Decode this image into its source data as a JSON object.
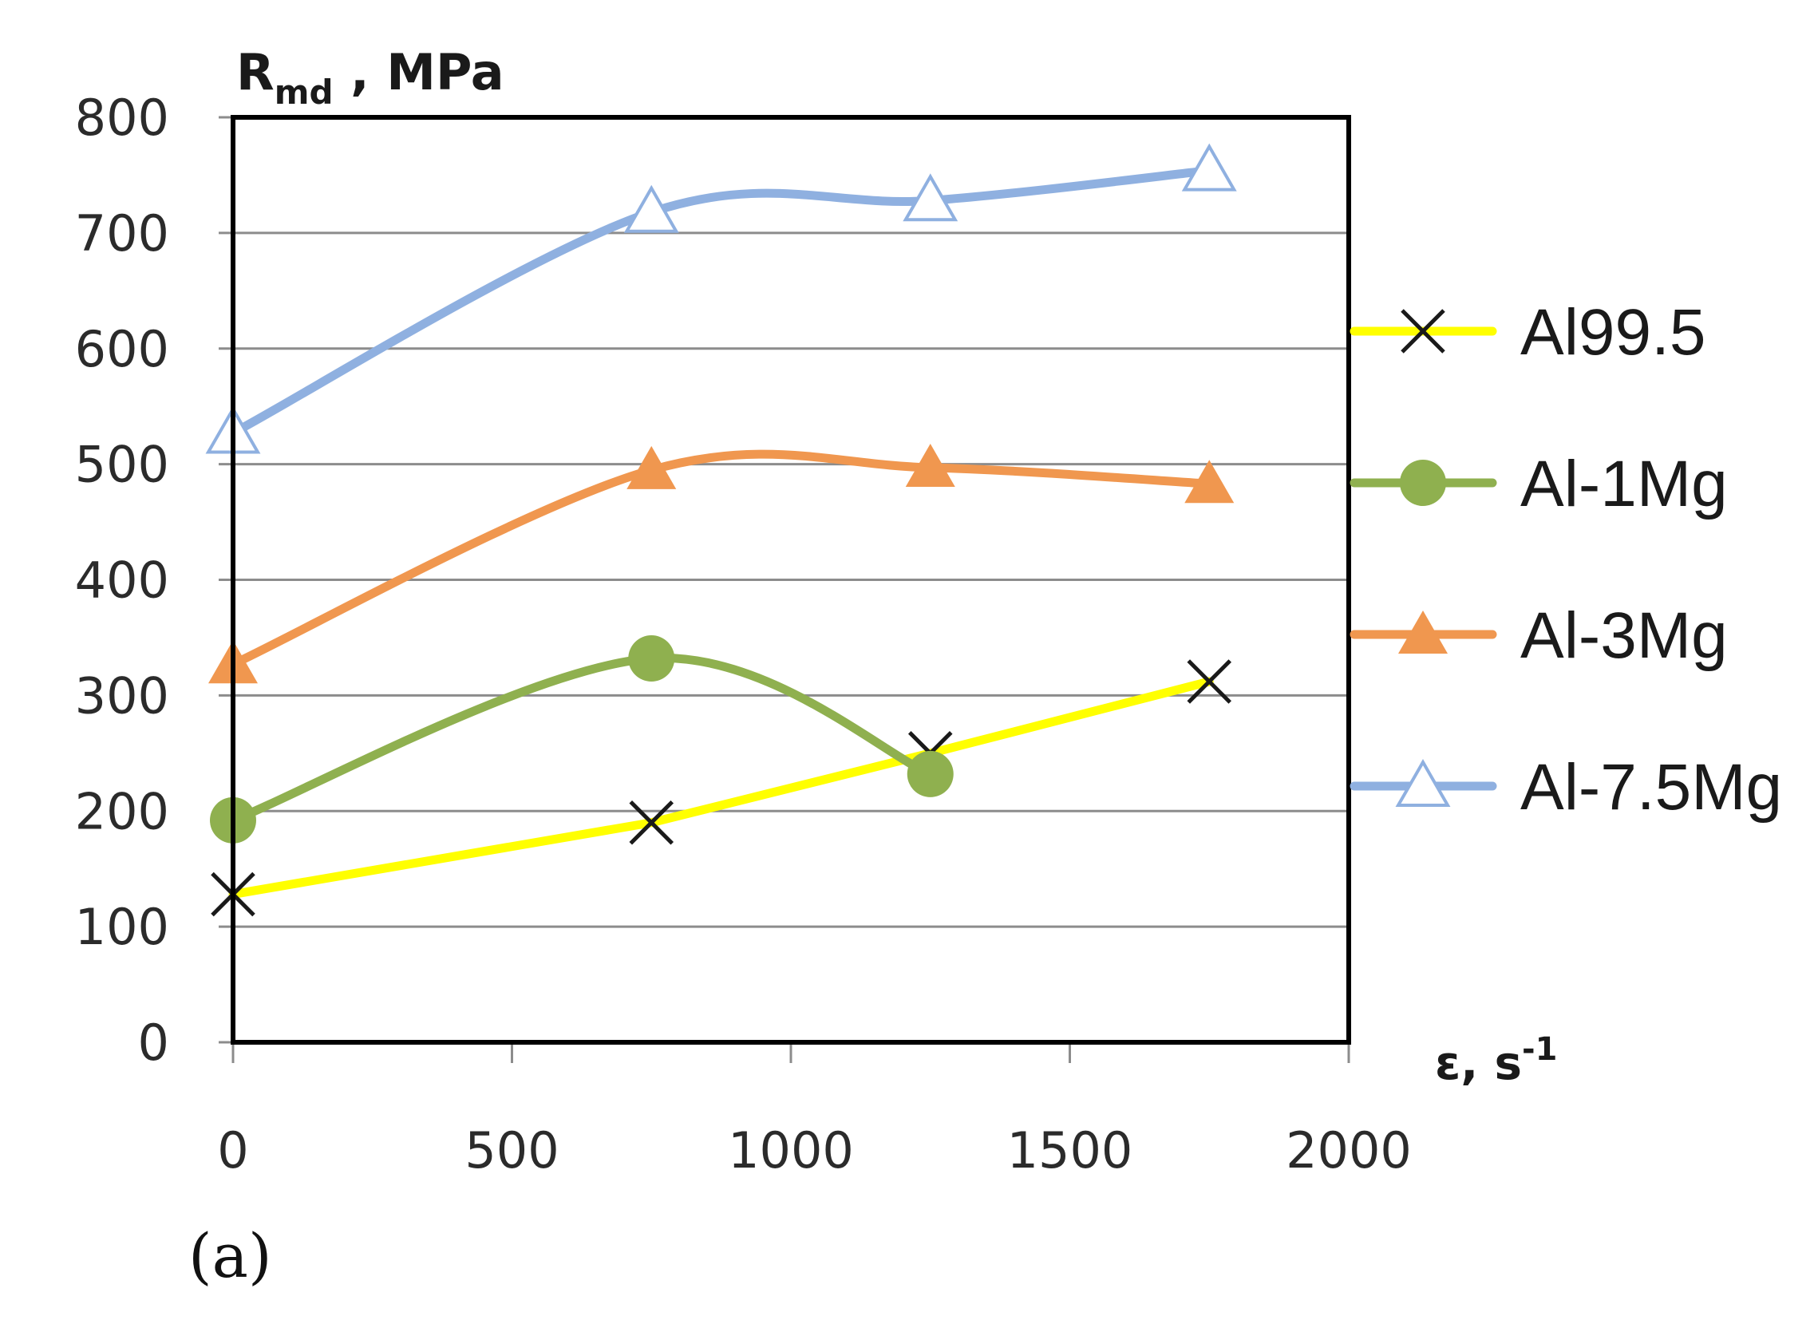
{
  "chart_data": {
    "type": "line",
    "y_title": {
      "main": "R",
      "sub": "md",
      "rest": " , MPa"
    },
    "x_title": {
      "main": "ε, s",
      "sup": "-1"
    },
    "panel_label": "(a)",
    "xlim": [
      0,
      2000
    ],
    "ylim": [
      0,
      800
    ],
    "x_ticks": [
      0,
      500,
      1000,
      1500,
      2000
    ],
    "y_ticks": [
      0,
      100,
      200,
      300,
      400,
      500,
      600,
      700,
      800
    ],
    "grid": "horizontal",
    "legend_position": "right",
    "series": [
      {
        "name": "Al99.5",
        "color": "#ffff00",
        "marker": "x",
        "marker_color": "#1a1a1a",
        "smooth": false,
        "x": [
          0,
          750,
          1250,
          1750
        ],
        "y": [
          128,
          190,
          250,
          312
        ]
      },
      {
        "name": "Al-1Mg",
        "color": "#8fb04f",
        "marker": "circle",
        "marker_color": "#8fb04f",
        "smooth": true,
        "x": [
          0,
          750,
          1250
        ],
        "y": [
          192,
          332,
          232
        ]
      },
      {
        "name": "Al-3Mg",
        "color": "#f0974f",
        "marker": "triangle",
        "marker_color": "#f0974f",
        "smooth": true,
        "x": [
          0,
          750,
          1250,
          1750
        ],
        "y": [
          327,
          495,
          497,
          483
        ]
      },
      {
        "name": "Al-7.5Mg",
        "color": "#8fb0e0",
        "marker": "triangle-open",
        "marker_color": "#8fb0e0",
        "smooth": true,
        "x": [
          0,
          750,
          1250,
          1750
        ],
        "y": [
          527,
          718,
          728,
          754
        ]
      }
    ]
  }
}
